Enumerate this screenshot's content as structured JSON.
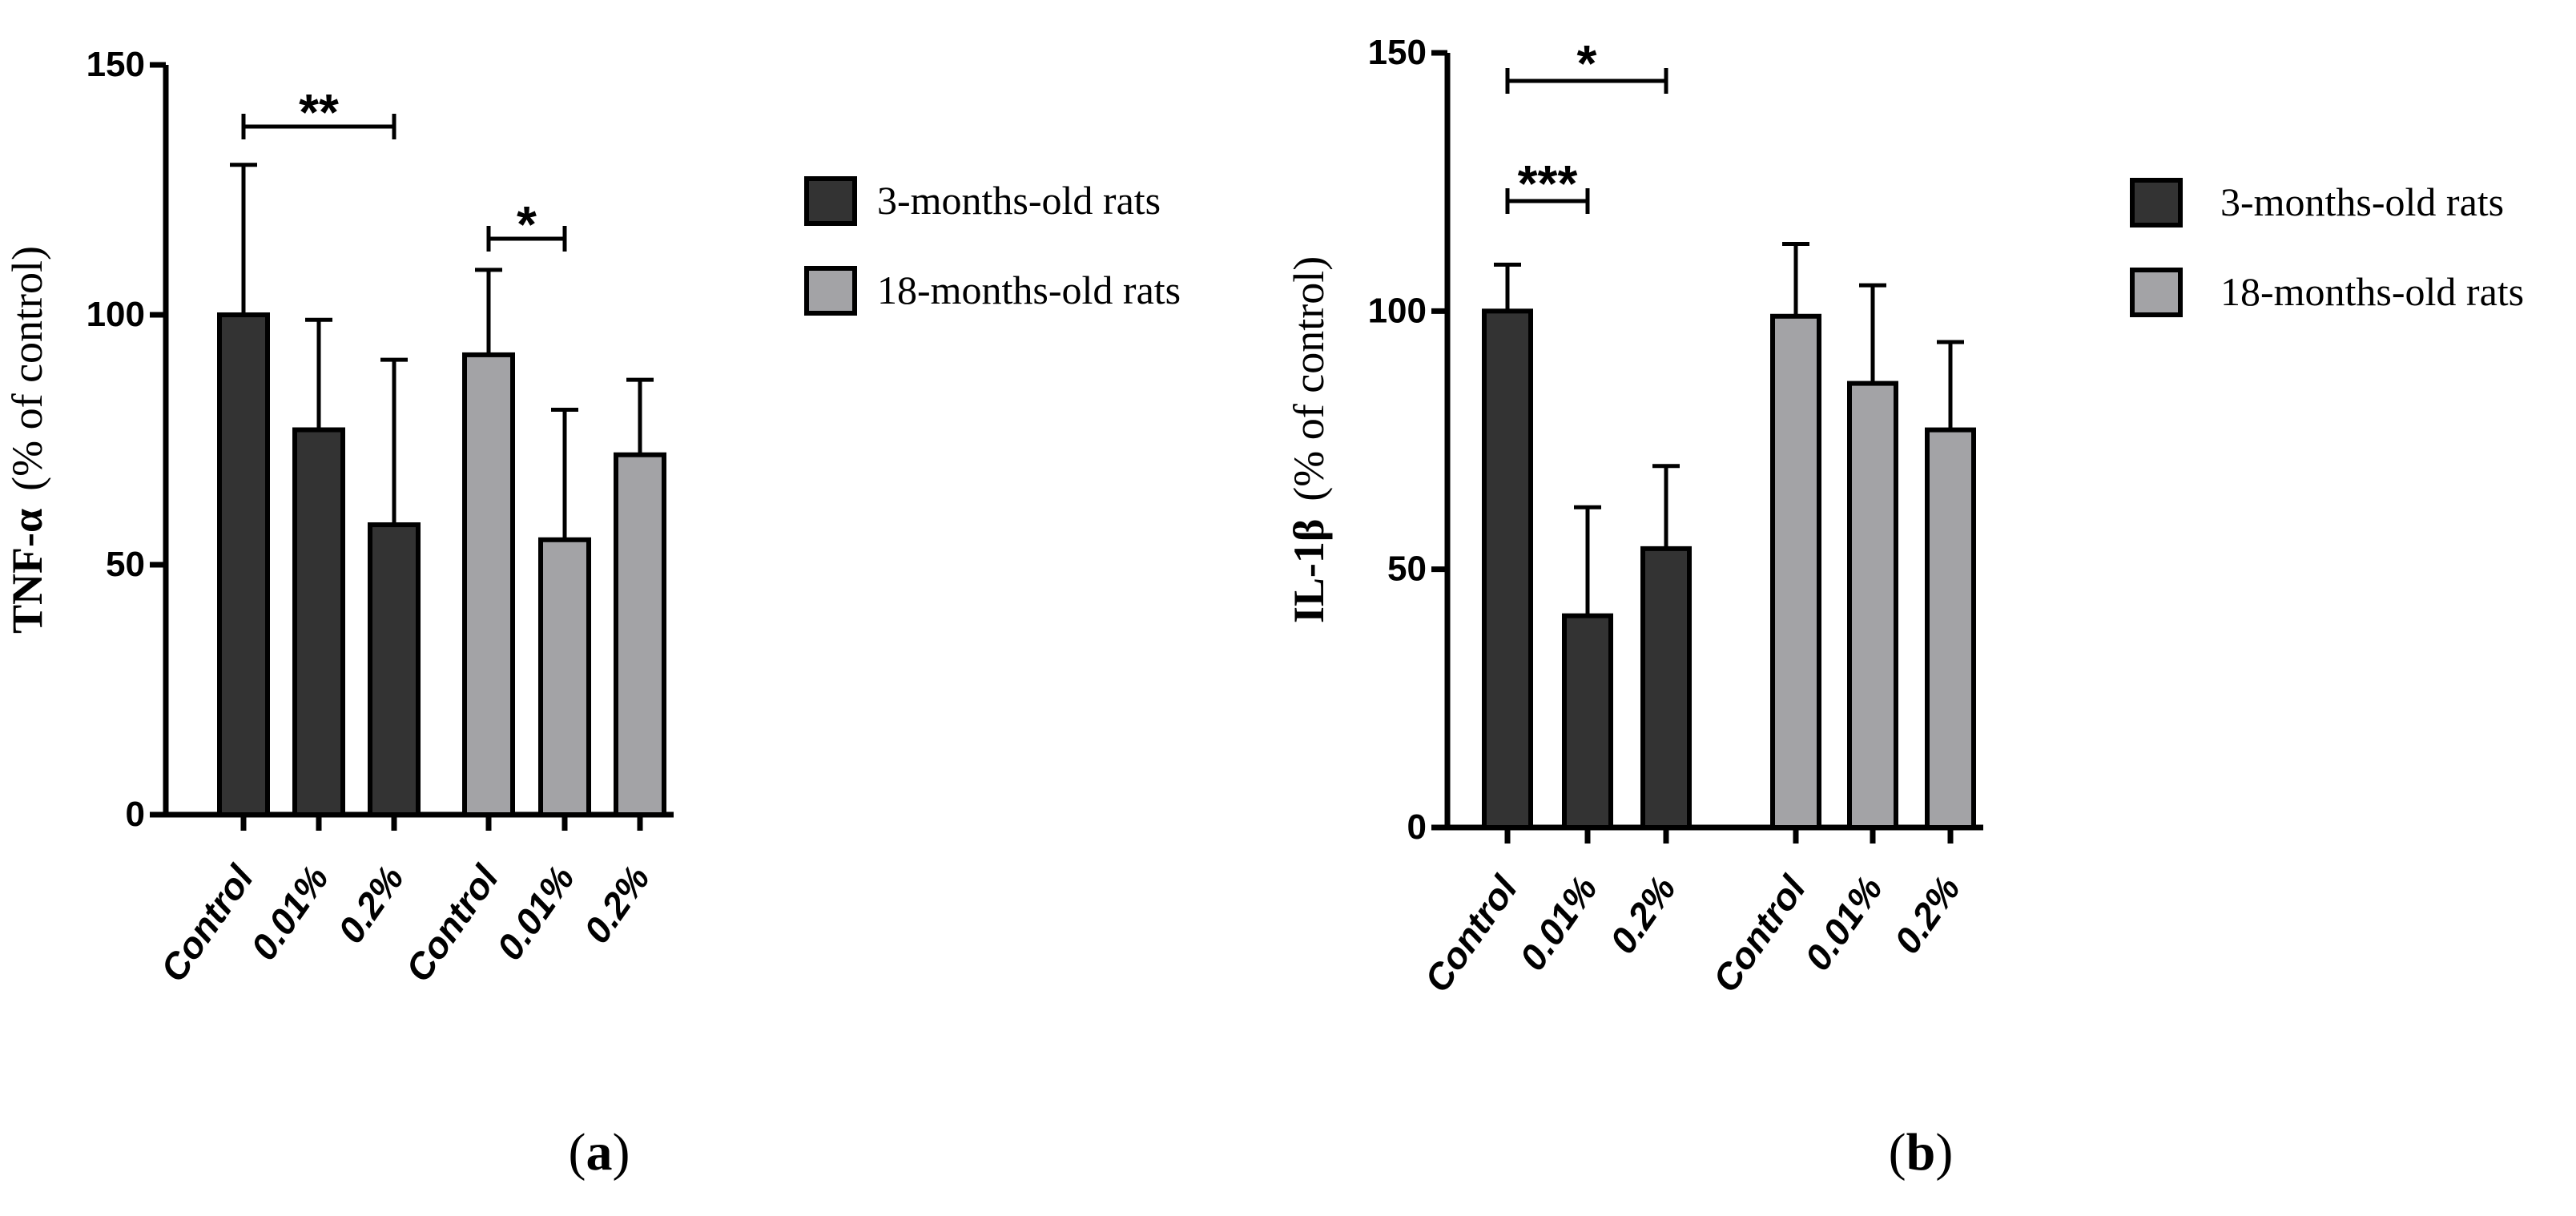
{
  "chart_data": [
    {
      "type": "bar",
      "panel_label": "(a)",
      "ylabel_marker": "TNF-α",
      "ylabel_unit": "(% of control)",
      "ylim": [
        0,
        150
      ],
      "yticks": [
        0,
        50,
        100,
        150
      ],
      "groups": [
        {
          "series": "3-months-old rats",
          "categories": [
            "Control",
            "0.01%",
            "0.2%"
          ],
          "values": [
            100,
            77,
            58
          ],
          "errors": [
            30,
            22,
            33
          ]
        },
        {
          "series": "18-months-old rats",
          "categories": [
            "Control",
            "0.01%",
            "0.2%"
          ],
          "values": [
            92,
            55,
            72
          ],
          "errors": [
            17,
            26,
            15
          ]
        }
      ],
      "significance": [
        {
          "label": "**",
          "from": [
            0,
            0
          ],
          "to": [
            0,
            2
          ]
        },
        {
          "label": "*",
          "from": [
            1,
            0
          ],
          "to": [
            1,
            1
          ]
        }
      ],
      "legend": [
        {
          "label": "3-months-old rats",
          "color": "#333333"
        },
        {
          "label": "18-months-old rats",
          "color": "#a3a3a6"
        }
      ]
    },
    {
      "type": "bar",
      "panel_label": "(b)",
      "ylabel_marker": "IL-1β",
      "ylabel_unit": "(% of control)",
      "ylim": [
        0,
        150
      ],
      "yticks": [
        0,
        50,
        100,
        150
      ],
      "groups": [
        {
          "series": "3-months-old rats",
          "categories": [
            "Control",
            "0.01%",
            "0.2%"
          ],
          "values": [
            100,
            41,
            54
          ],
          "errors": [
            9,
            21,
            16
          ]
        },
        {
          "series": "18-months-old rats",
          "categories": [
            "Control",
            "0.01%",
            "0.2%"
          ],
          "values": [
            99,
            86,
            77
          ],
          "errors": [
            14,
            19,
            17
          ]
        }
      ],
      "significance": [
        {
          "label": "*",
          "from": [
            0,
            0
          ],
          "to": [
            0,
            2
          ]
        },
        {
          "label": "***",
          "from": [
            0,
            0
          ],
          "to": [
            0,
            1
          ]
        }
      ],
      "legend": [
        {
          "label": "3-months-old rats",
          "color": "#333333"
        },
        {
          "label": "18-months-old rats",
          "color": "#a3a3a6"
        }
      ]
    }
  ]
}
